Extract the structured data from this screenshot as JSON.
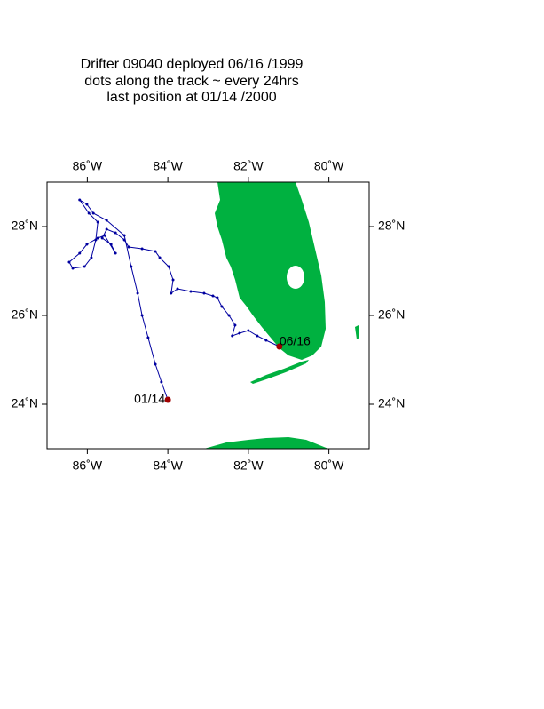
{
  "chart_data": {
    "type": "map",
    "title": [
      "Drifter 09040  deployed  06/16 /1999",
      "dots along the track ~ every 24hrs",
      "last position at 01/14 /2000"
    ],
    "xlim": [
      -87,
      -79
    ],
    "ylim": [
      23,
      29
    ],
    "xticks": [
      {
        "value": -86,
        "label": "86˚W"
      },
      {
        "value": -84,
        "label": "84˚W"
      },
      {
        "value": -82,
        "label": "82˚W"
      },
      {
        "value": -80,
        "label": "80˚W"
      }
    ],
    "yticks": [
      {
        "value": 24,
        "label": "24˚N"
      },
      {
        "value": 26,
        "label": "26˚N"
      },
      {
        "value": 28,
        "label": "28˚N"
      }
    ],
    "x": [
      -81.23,
      -81.56,
      -81.78,
      -82.0,
      -82.22,
      -82.4,
      -82.33,
      -82.48,
      -82.66,
      -82.77,
      -82.88,
      -83.1,
      -83.43,
      -83.76,
      -83.92,
      -83.87,
      -83.98,
      -84.2,
      -84.31,
      -84.64,
      -84.97,
      -85.08,
      -85.3,
      -85.52,
      -85.63,
      -85.41,
      -85.3,
      -85.57,
      -85.74,
      -86.01,
      -86.19,
      -86.45,
      -86.36,
      -86.07,
      -85.9,
      -85.79,
      -85.74,
      -85.96,
      -86.19,
      -86.01,
      -85.85,
      -85.52,
      -85.08,
      -84.91,
      -84.75,
      -84.64,
      -84.49,
      -84.31,
      -84.16,
      -84.0
    ],
    "values": [
      25.3,
      25.44,
      25.54,
      25.66,
      25.6,
      25.54,
      25.78,
      26.0,
      26.2,
      26.4,
      26.44,
      26.5,
      26.54,
      26.6,
      26.5,
      26.8,
      27.1,
      27.3,
      27.44,
      27.5,
      27.54,
      27.7,
      27.86,
      27.94,
      27.74,
      27.6,
      27.4,
      27.8,
      27.74,
      27.6,
      27.4,
      27.2,
      27.06,
      27.1,
      27.3,
      27.7,
      28.1,
      28.3,
      28.6,
      28.5,
      28.3,
      28.14,
      27.8,
      27.1,
      26.5,
      26.0,
      25.5,
      24.9,
      24.5,
      24.1
    ],
    "color": "#0000a0",
    "marker_color": "#a00000",
    "start_label": "06/16",
    "end_label": "01/14"
  }
}
